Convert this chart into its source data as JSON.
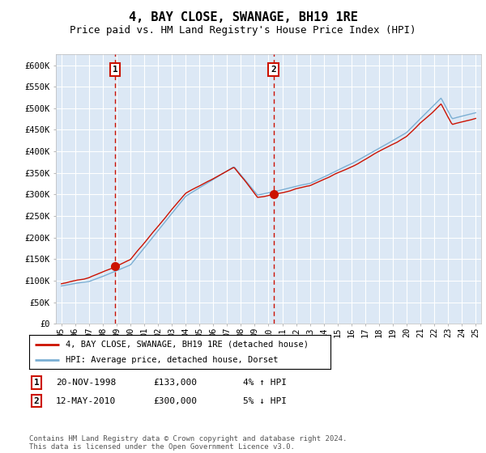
{
  "title": "4, BAY CLOSE, SWANAGE, BH19 1RE",
  "subtitle": "Price paid vs. HM Land Registry's House Price Index (HPI)",
  "ylim": [
    0,
    620000
  ],
  "yticks": [
    0,
    50000,
    100000,
    150000,
    200000,
    250000,
    300000,
    350000,
    400000,
    450000,
    500000,
    550000,
    600000
  ],
  "ytick_labels": [
    "£0",
    "£50K",
    "£100K",
    "£150K",
    "£200K",
    "£250K",
    "£300K",
    "£350K",
    "£400K",
    "£450K",
    "£500K",
    "£550K",
    "£600K"
  ],
  "background_color": "#ffffff",
  "plot_bg_color": "#dce8f5",
  "grid_color": "#ffffff",
  "purchase1_date": 1998.89,
  "purchase1_price": 133000,
  "purchase2_date": 2010.36,
  "purchase2_price": 300000,
  "hpi_color": "#7bafd4",
  "price_color": "#cc1100",
  "dashed_line_color": "#cc1100",
  "marker_color": "#cc1100",
  "legend_text1": "4, BAY CLOSE, SWANAGE, BH19 1RE (detached house)",
  "legend_text2": "HPI: Average price, detached house, Dorset",
  "table_row1": [
    "1",
    "20-NOV-1998",
    "£133,000",
    "4% ↑ HPI"
  ],
  "table_row2": [
    "2",
    "12-MAY-2010",
    "£300,000",
    "5% ↓ HPI"
  ],
  "footer_text": "Contains HM Land Registry data © Crown copyright and database right 2024.\nThis data is licensed under the Open Government Licence v3.0.",
  "title_fontsize": 11,
  "subtitle_fontsize": 9
}
